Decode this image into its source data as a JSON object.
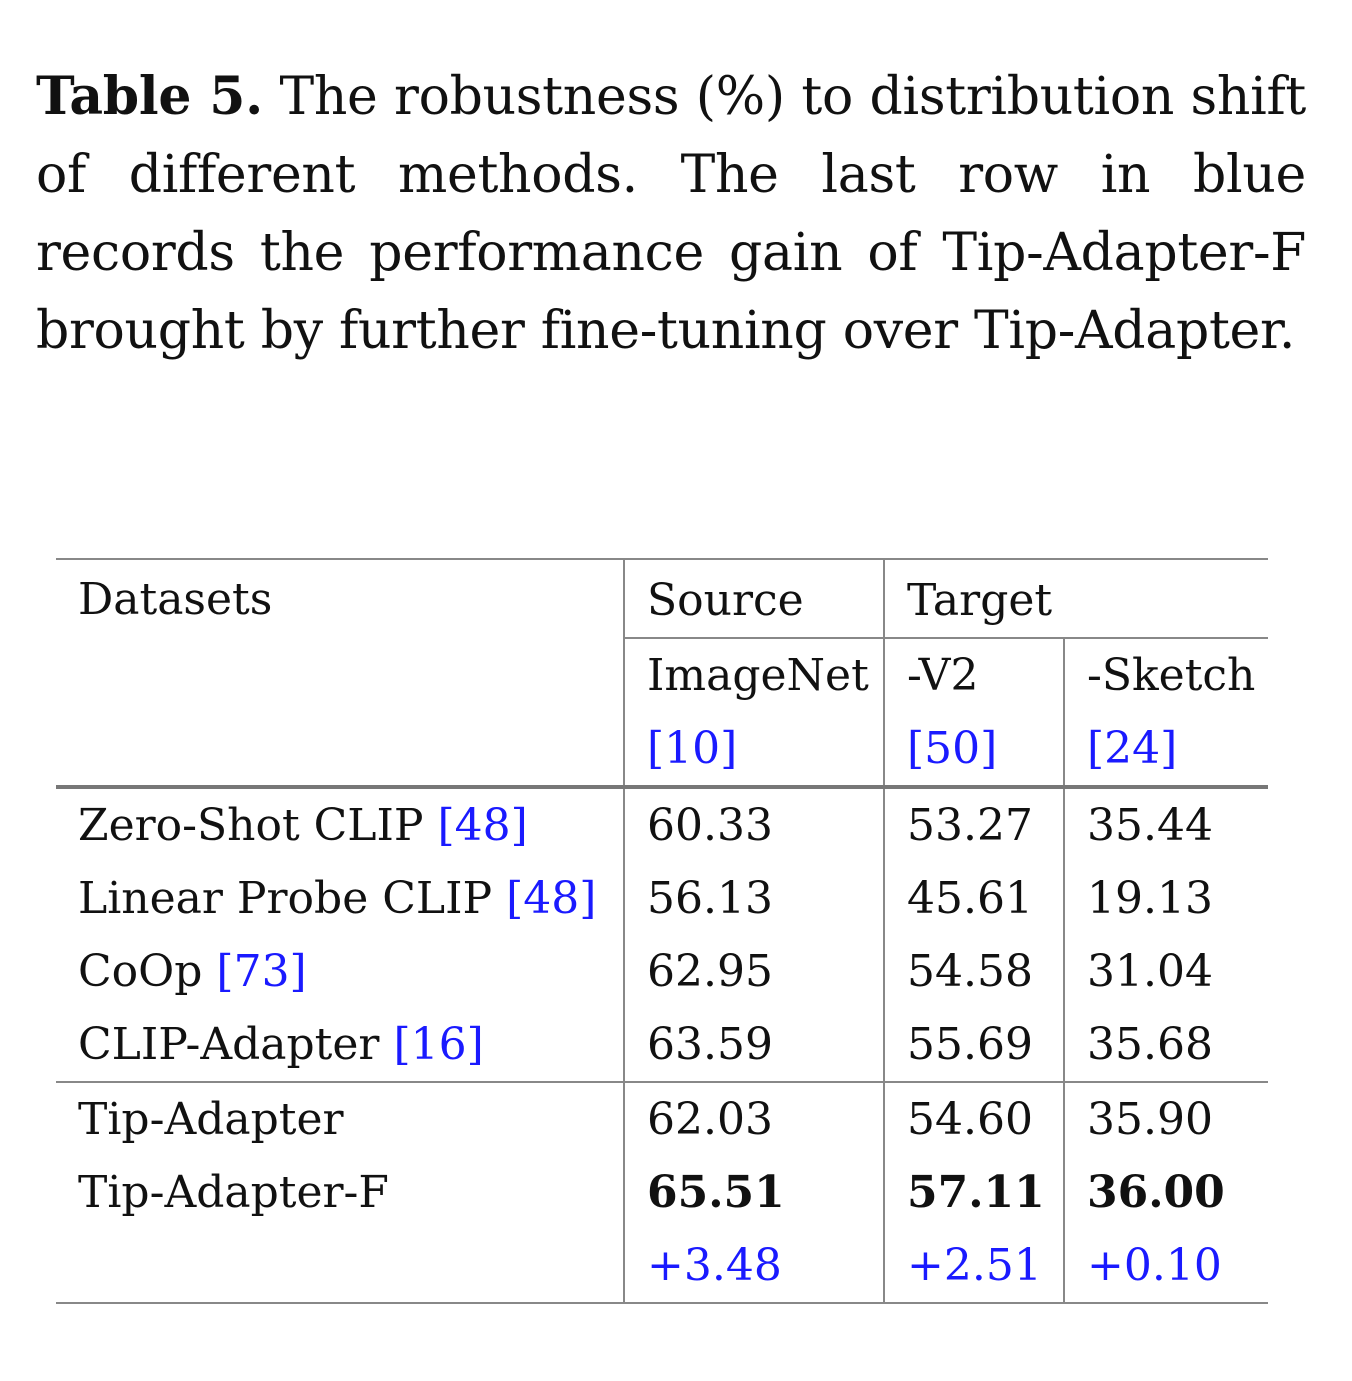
{
  "caption": {
    "label": "Table 5.",
    "text": "The robustness (%) to distribution shift of different methods. The last row in blue records the performance gain of Tip-Adapter-F brought by further fine-tuning over Tip-Adapter."
  },
  "table": {
    "header": {
      "datasets": "Datasets",
      "source": "Source",
      "target": "Target",
      "imagenet": "ImageNet",
      "imagenet_ref": "[10]",
      "v2": "-V2",
      "v2_ref": "[50]",
      "sketch": "-Sketch",
      "sketch_ref": "[24]"
    },
    "baselines": [
      {
        "method": "Zero-Shot CLIP",
        "ref": "[48]",
        "imagenet": "60.33",
        "v2": "53.27",
        "sketch": "35.44"
      },
      {
        "method": "Linear Probe CLIP",
        "ref": "[48]",
        "imagenet": "56.13",
        "v2": "45.61",
        "sketch": "19.13"
      },
      {
        "method": "CoOp",
        "ref": "[73]",
        "imagenet": "62.95",
        "v2": "54.58",
        "sketch": "31.04"
      },
      {
        "method": "CLIP-Adapter",
        "ref": "[16]",
        "imagenet": "63.59",
        "v2": "55.69",
        "sketch": "35.68"
      }
    ],
    "ours": [
      {
        "method": "Tip-Adapter",
        "imagenet": "62.03",
        "v2": "54.60",
        "sketch": "35.90"
      },
      {
        "method": "Tip-Adapter-F",
        "imagenet": "65.51",
        "v2": "57.11",
        "sketch": "36.00"
      }
    ],
    "gain": {
      "imagenet": "+3.48",
      "v2": "+2.51",
      "sketch": "+0.10"
    }
  }
}
